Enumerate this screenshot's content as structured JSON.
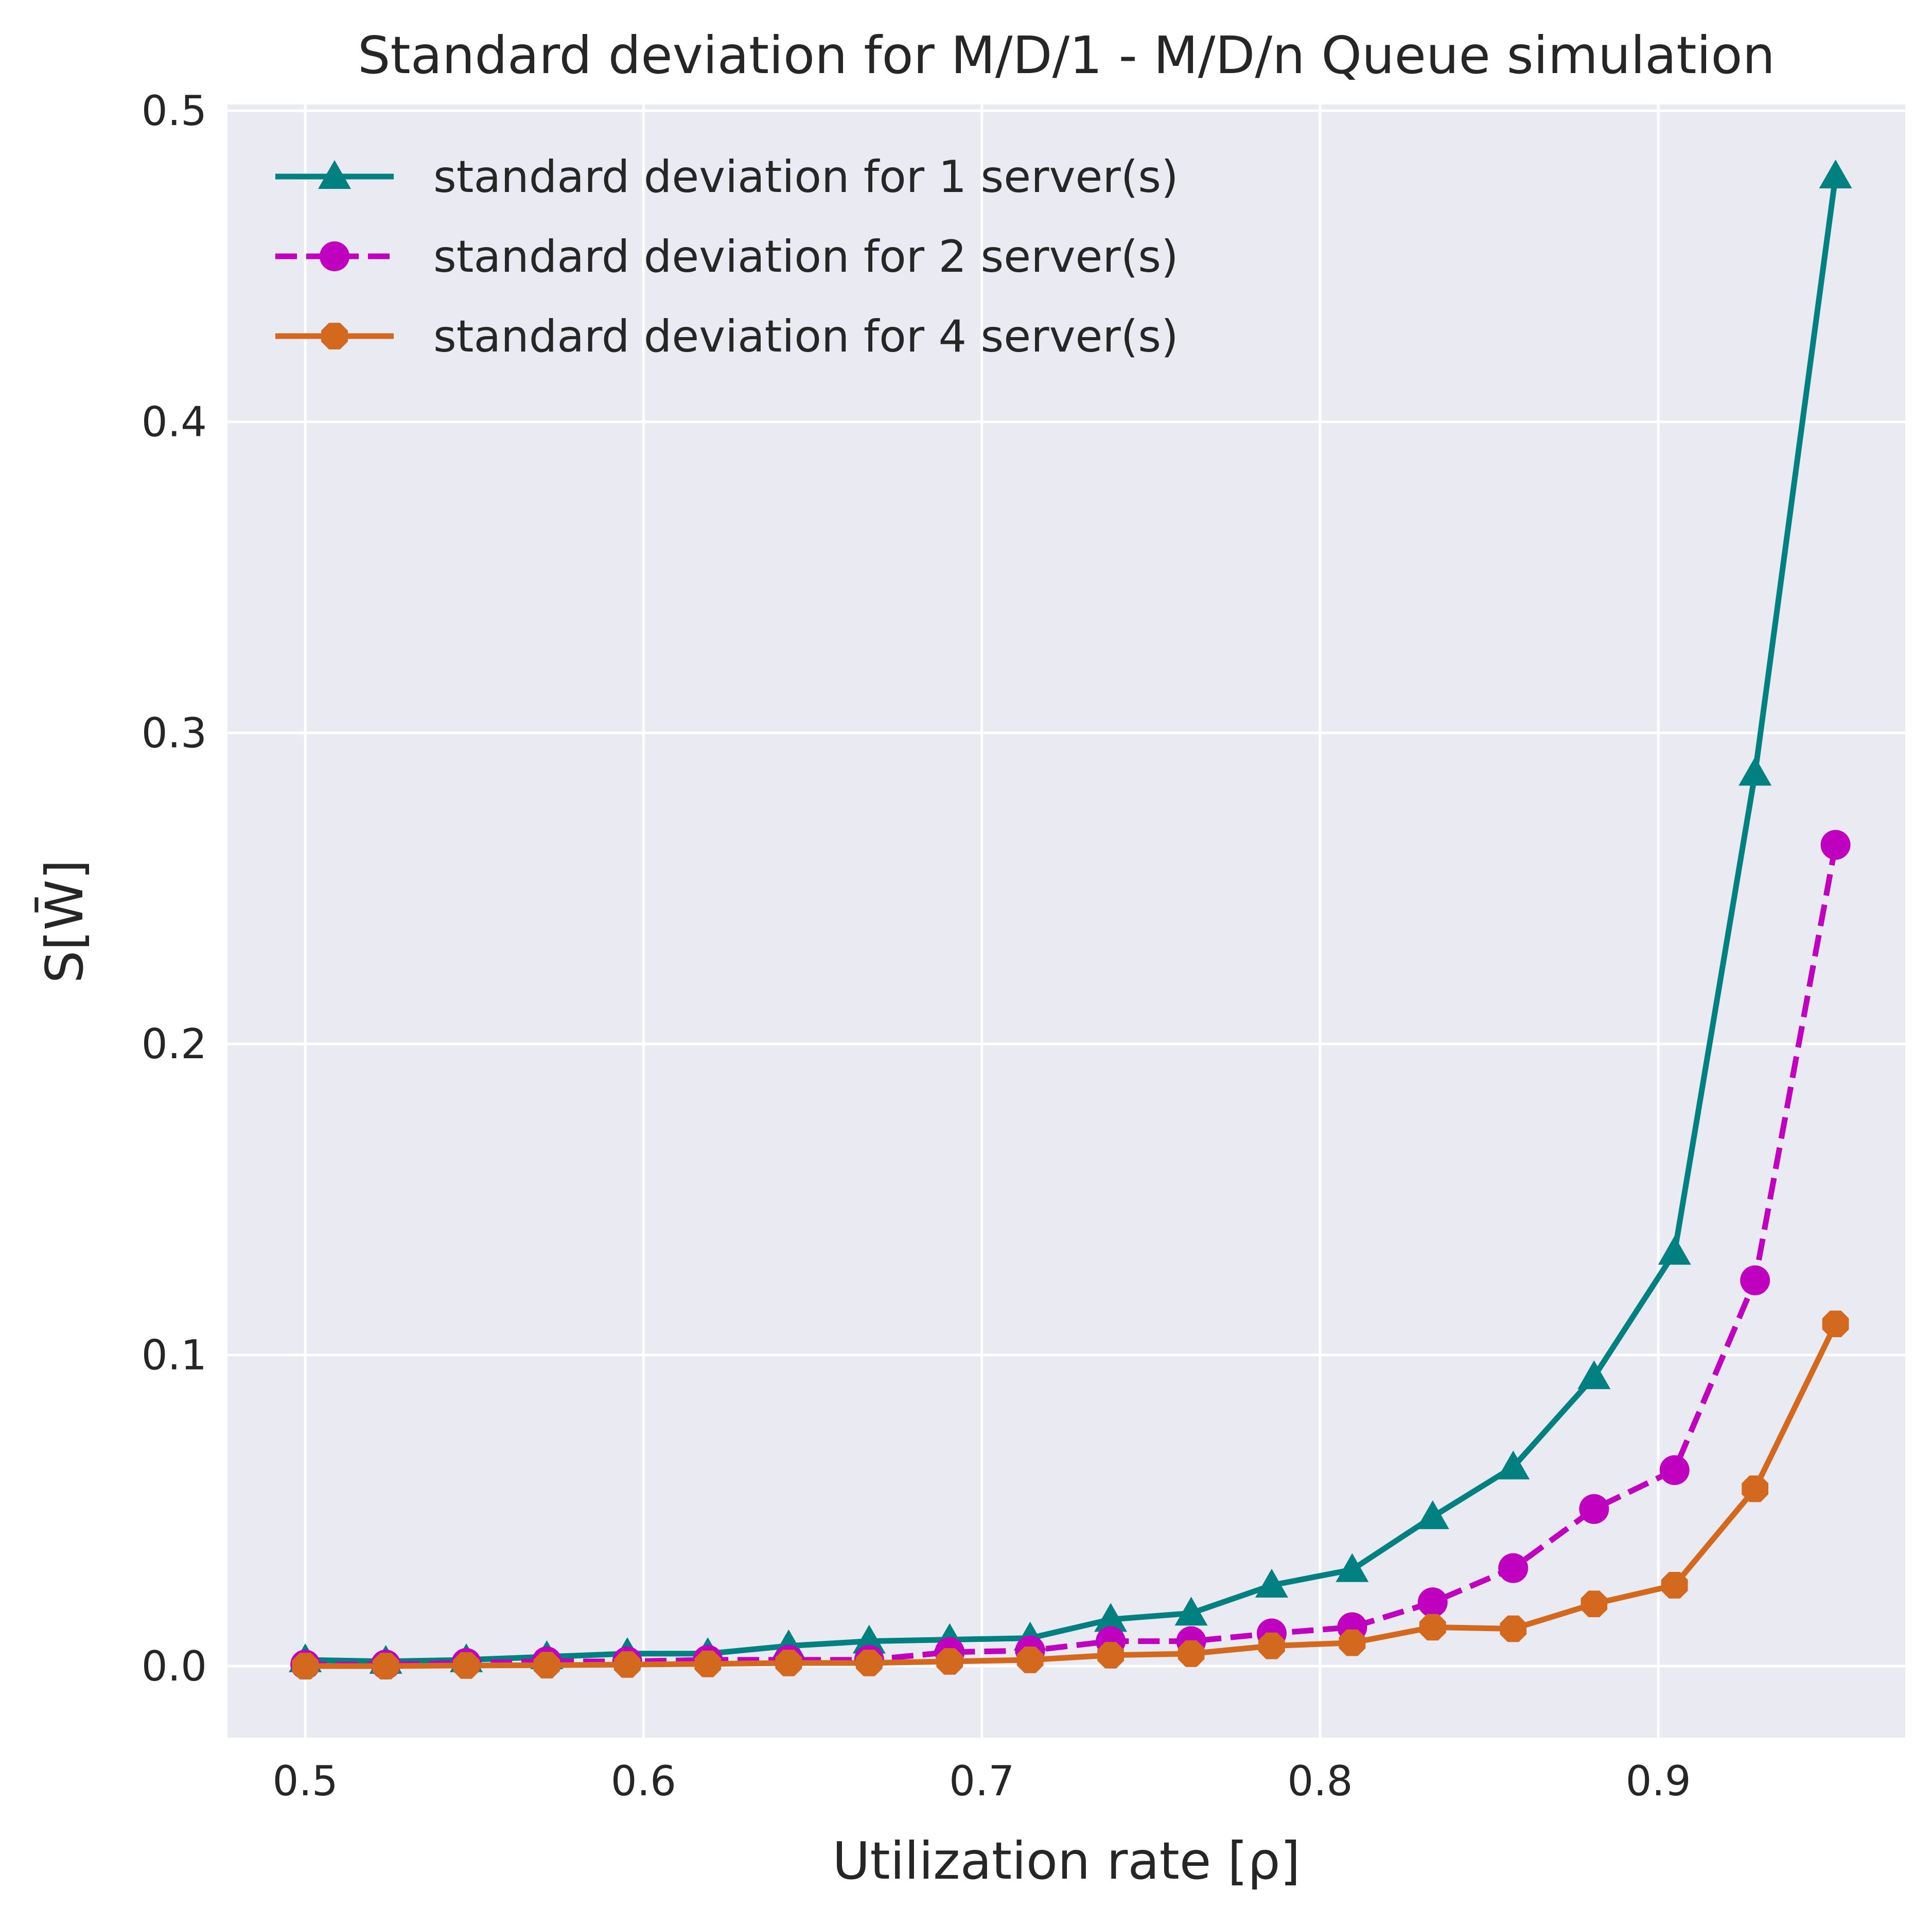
{
  "chart_data": {
    "type": "line",
    "title": "Standard deviation for M/D/1 - M/D/n Queue simulation",
    "xlabel": "Utilization rate [ρ]",
    "ylabel": "S[W̄]",
    "xlim": [
      0.477,
      0.973
    ],
    "ylim": [
      -0.023,
      0.502
    ],
    "xticks": [
      "0.5",
      "0.6",
      "0.7",
      "0.8",
      "0.9"
    ],
    "yticks": [
      "0.0",
      "0.1",
      "0.2",
      "0.3",
      "0.4",
      "0.5"
    ],
    "grid": true,
    "legend_position": "top-left",
    "x": [
      0.5,
      0.5238,
      0.5476,
      0.5714,
      0.5952,
      0.619,
      0.6429,
      0.6667,
      0.6905,
      0.7143,
      0.7381,
      0.7619,
      0.7857,
      0.8095,
      0.8333,
      0.8571,
      0.881,
      0.9048,
      0.9286,
      0.9524
    ],
    "series": [
      {
        "name": "standard deviation for 1 server(s)",
        "color": "#008080",
        "marker": "triangle",
        "linestyle": "solid",
        "values": [
          0.002,
          0.0015,
          0.002,
          0.003,
          0.004,
          0.004,
          0.0065,
          0.008,
          0.0085,
          0.009,
          0.015,
          0.017,
          0.026,
          0.031,
          0.048,
          0.064,
          0.093,
          0.133,
          0.287,
          0.479
        ]
      },
      {
        "name": "standard deviation for 2 server(s)",
        "color": "#BF00BF",
        "marker": "circle",
        "linestyle": "dashed",
        "values": [
          0.0005,
          0.0005,
          0.001,
          0.0015,
          0.0015,
          0.002,
          0.002,
          0.002,
          0.0045,
          0.005,
          0.008,
          0.008,
          0.0105,
          0.0125,
          0.0205,
          0.0315,
          0.0505,
          0.063,
          0.124,
          0.264
        ]
      },
      {
        "name": "standard deviation for 4 server(s)",
        "color": "#D2691E",
        "marker": "octagon",
        "linestyle": "solid",
        "values": [
          0.0,
          0.0,
          0.0002,
          0.0003,
          0.0005,
          0.0007,
          0.001,
          0.001,
          0.0015,
          0.002,
          0.0035,
          0.004,
          0.0065,
          0.0075,
          0.0125,
          0.012,
          0.02,
          0.026,
          0.057,
          0.11
        ]
      }
    ]
  }
}
